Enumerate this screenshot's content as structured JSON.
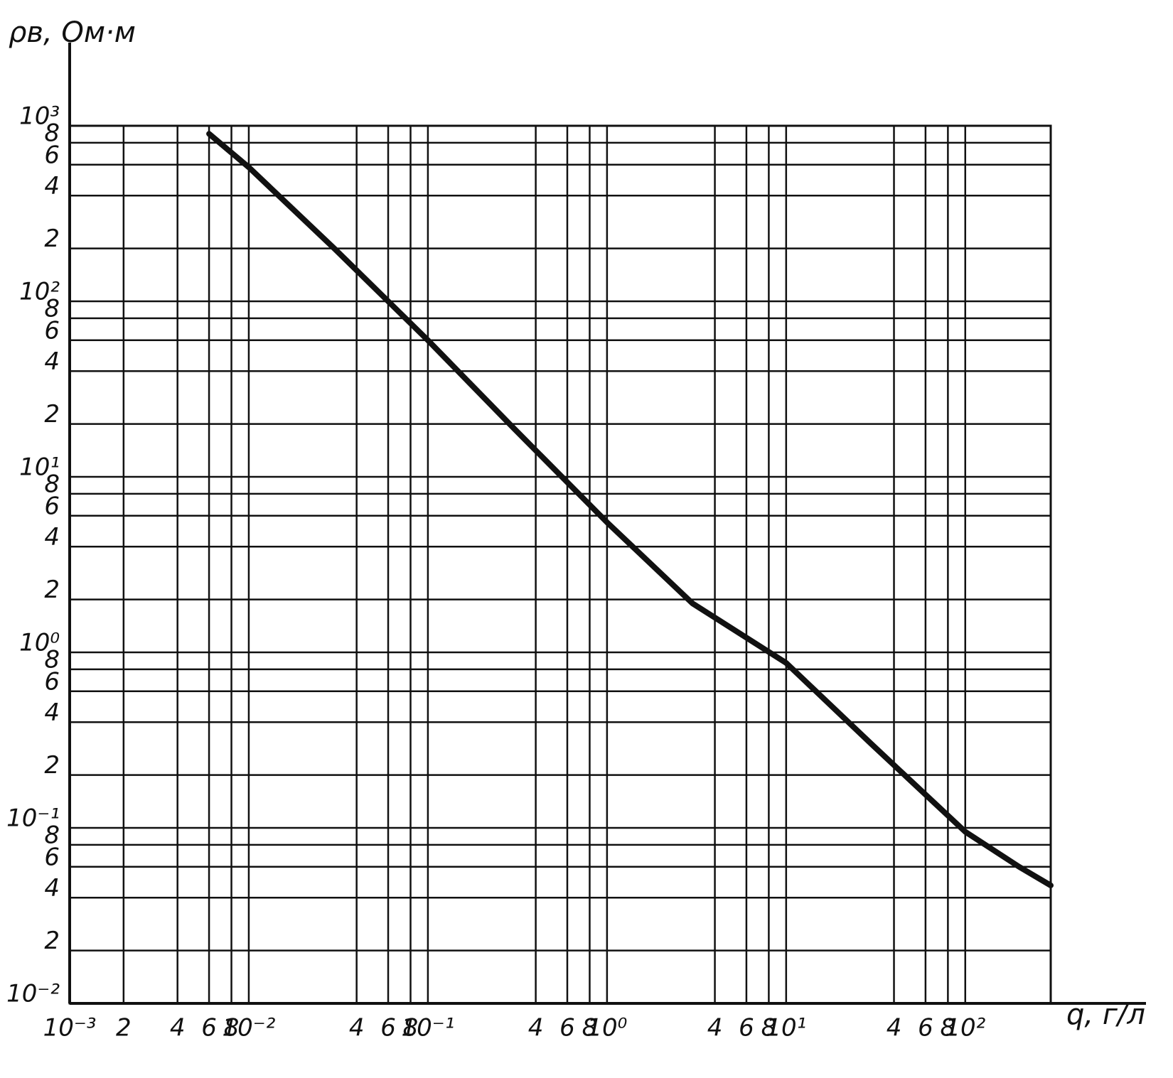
{
  "chart_data": {
    "type": "line",
    "log_x": true,
    "log_y": true,
    "grid": true,
    "color": "#111111",
    "y_label": "ρв, Ом·м",
    "x_label": "q, г/л",
    "x": [
      0.006,
      0.01,
      0.03,
      0.1,
      0.3,
      1,
      3,
      10,
      30,
      100,
      200,
      300
    ],
    "values": [
      900,
      580,
      200,
      60,
      19,
      5.5,
      1.9,
      0.87,
      0.3,
      0.095,
      0.06,
      0.047
    ],
    "xlim": [
      0.001,
      300
    ],
    "ylim": [
      0.01,
      1000
    ],
    "xticks": [
      {
        "value": 0.001,
        "label": "10⁻³"
      },
      {
        "value": 0.002,
        "label": "2"
      },
      {
        "value": 0.004,
        "label": "4"
      },
      {
        "value": 0.006,
        "label": "6"
      },
      {
        "value": 0.008,
        "label": "8"
      },
      {
        "value": 0.01,
        "label": "10⁻²"
      },
      {
        "value": 0.04,
        "label": "4"
      },
      {
        "value": 0.06,
        "label": "6"
      },
      {
        "value": 0.08,
        "label": "8"
      },
      {
        "value": 0.1,
        "label": "10⁻¹"
      },
      {
        "value": 0.4,
        "label": "4"
      },
      {
        "value": 0.6,
        "label": "6"
      },
      {
        "value": 0.8,
        "label": "8"
      },
      {
        "value": 1,
        "label": "10⁰"
      },
      {
        "value": 4,
        "label": "4"
      },
      {
        "value": 6,
        "label": "6"
      },
      {
        "value": 8,
        "label": "8"
      },
      {
        "value": 10,
        "label": "10¹"
      },
      {
        "value": 40,
        "label": "4"
      },
      {
        "value": 60,
        "label": "6"
      },
      {
        "value": 80,
        "label": "8"
      },
      {
        "value": 100,
        "label": "10²"
      }
    ],
    "yticks": [
      {
        "value": 0.01,
        "label": "10⁻²"
      },
      {
        "value": 0.02,
        "label": "2"
      },
      {
        "value": 0.04,
        "label": "4"
      },
      {
        "value": 0.06,
        "label": "6"
      },
      {
        "value": 0.08,
        "label": "8"
      },
      {
        "value": 0.1,
        "label": "10⁻¹"
      },
      {
        "value": 0.2,
        "label": "2"
      },
      {
        "value": 0.4,
        "label": "4"
      },
      {
        "value": 0.6,
        "label": "6"
      },
      {
        "value": 0.8,
        "label": "8"
      },
      {
        "value": 1,
        "label": "10⁰"
      },
      {
        "value": 2,
        "label": "2"
      },
      4,
      6,
      8,
      {
        "value": 10,
        "label": "10¹"
      },
      {
        "value": 20,
        "label": "2"
      },
      {
        "value": 40,
        "label": "4"
      },
      {
        "value": 60,
        "label": "6"
      },
      {
        "value": 80,
        "label": "8"
      },
      {
        "value": 100,
        "label": "10²"
      },
      {
        "value": 200,
        "label": "2"
      },
      {
        "value": 400,
        "label": "4"
      },
      {
        "value": 600,
        "label": "6"
      },
      {
        "value": 800,
        "label": "8"
      },
      {
        "value": 1000,
        "label": "10³"
      }
    ]
  }
}
